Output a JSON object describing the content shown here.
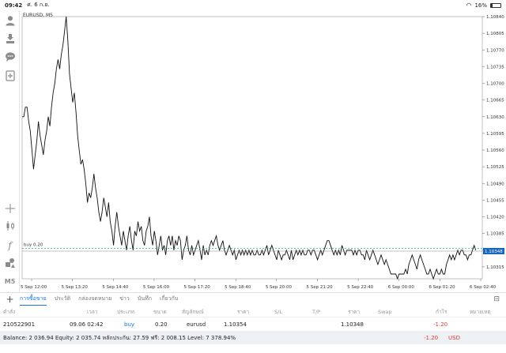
{
  "status_bar": {
    "time": "09:42",
    "date": "ศ. 6 ก.ย.",
    "battery": "16%",
    "battery_level": 0.16
  },
  "sidebar": {
    "icons": [
      "user-icon",
      "transfer-icon",
      "chat-icon",
      "add-document-icon",
      "crosshair-icon",
      "candlestick-icon",
      "function-icon",
      "objects-icon"
    ],
    "timeframe": "M5"
  },
  "chart": {
    "symbol_label": "EURUSD, M5",
    "buy_line_label": "buy 0.20",
    "current_price_label": "1.10348"
  },
  "chart_data": {
    "type": "line",
    "title": "EURUSD, M5",
    "ylim": [
      1.1029,
      1.1084
    ],
    "y_ticks": [
      "1.10840",
      "1.10805",
      "1.10770",
      "1.10735",
      "1.10700",
      "1.10665",
      "1.10630",
      "1.10595",
      "1.10560",
      "1.10525",
      "1.10490",
      "1.10455",
      "1.10420",
      "1.10385",
      "1.10350",
      "1.10315"
    ],
    "x_ticks": [
      "5 Sep 12:00",
      "5 Sep 13:20",
      "5 Sep 14:40",
      "5 Sep 16:00",
      "5 Sep 17:20",
      "5 Sep 18:40",
      "5 Sep 20:00",
      "5 Sep 21:20",
      "5 Sep 22:40",
      "6 Sep 00:00",
      "6 Sep 01:20",
      "6 Sep 02:40"
    ],
    "x_range": [
      0,
      282
    ],
    "trade_level": 1.10354,
    "current_price": 1.10348,
    "series": [
      {
        "values": [
          1.1063,
          1.1063,
          1.1065,
          1.1065,
          1.1062,
          1.106,
          1.1056,
          1.1052,
          1.1055,
          1.1058,
          1.1062,
          1.1059,
          1.1057,
          1.1055,
          1.1058,
          1.106,
          1.1063,
          1.1061,
          1.1065,
          1.1068,
          1.107,
          1.1073,
          1.1075,
          1.1073,
          1.1076,
          1.1078,
          1.1081,
          1.1084,
          1.1079,
          1.1072,
          1.1069,
          1.1066,
          1.1068,
          1.1064,
          1.1059,
          1.1056,
          1.1053,
          1.1054,
          1.1052,
          1.1049,
          1.1045,
          1.1047,
          1.1046,
          1.1048,
          1.1051,
          1.1048,
          1.1046,
          1.1043,
          1.1041,
          1.1043,
          1.1046,
          1.1044,
          1.1042,
          1.1045,
          1.1041,
          1.1039,
          1.1036,
          1.104,
          1.1043,
          1.104,
          1.1038,
          1.1036,
          1.1039,
          1.1037,
          1.1035,
          1.1038,
          1.104,
          1.1037,
          1.1035,
          1.1039,
          1.1038,
          1.1041,
          1.1039,
          1.104,
          1.1037,
          1.1036,
          1.1039,
          1.104,
          1.1042,
          1.1038,
          1.1036,
          1.1039,
          1.1037,
          1.1034,
          1.1036,
          1.1038,
          1.1035,
          1.1036,
          1.1034,
          1.1037,
          1.1038,
          1.1036,
          1.1038,
          1.1035,
          1.1037,
          1.1036,
          1.1038,
          1.1037,
          1.1033,
          1.1035,
          1.1036,
          1.1038,
          1.1035,
          1.1034,
          1.1036,
          1.1034,
          1.1035,
          1.1036,
          1.1037,
          1.1035,
          1.1033,
          1.1036,
          1.1034,
          1.1035,
          1.1034,
          1.1036,
          1.1037,
          1.1036,
          1.1037,
          1.1038,
          1.1036,
          1.1035,
          1.1036,
          1.1037,
          1.1035,
          1.1034,
          1.1035,
          1.1036,
          1.1035,
          1.1034,
          1.1035,
          1.1033,
          1.1034,
          1.1035,
          1.1034,
          1.1035,
          1.1034,
          1.1035,
          1.1034,
          1.1035,
          1.1034,
          1.1035,
          1.1034,
          1.1034,
          1.1035,
          1.1034,
          1.1034,
          1.1035,
          1.1034,
          1.1035,
          1.1036,
          1.1034,
          1.1035,
          1.1036,
          1.1035,
          1.1034,
          1.1033,
          1.1035,
          1.1034,
          1.1033,
          1.1034,
          1.1034,
          1.1035,
          1.1034,
          1.1033,
          1.1035,
          1.1033,
          1.1034,
          1.1035,
          1.1034,
          1.1035,
          1.1034,
          1.1035,
          1.1034,
          1.1034,
          1.1035,
          1.1035,
          1.1034,
          1.1035,
          1.1035,
          1.1034,
          1.1033,
          1.1034,
          1.1035,
          1.1034,
          1.1035,
          1.1036,
          1.1037,
          1.1037,
          1.1036,
          1.1035,
          1.1034,
          1.1035,
          1.1034,
          1.1035,
          1.1034,
          1.1036,
          1.1035,
          1.1034,
          1.1035,
          1.1035,
          1.1035,
          1.1035,
          1.1034,
          1.1035,
          1.1034,
          1.1035,
          1.1035,
          1.1034,
          1.1034,
          1.1033,
          1.1035,
          1.1034,
          1.1033,
          1.1034,
          1.1035,
          1.1034,
          1.1033,
          1.1032,
          1.1033,
          1.1034,
          1.1033,
          1.1032,
          1.1033,
          1.1032,
          1.1031,
          1.103,
          1.103,
          1.103,
          1.103,
          1.1029,
          1.103,
          1.103,
          1.103,
          1.103,
          1.1031,
          1.103,
          1.1032,
          1.1033,
          1.1034,
          1.1033,
          1.1032,
          1.1031,
          1.1033,
          1.1034,
          1.1033,
          1.1032,
          1.1031,
          1.103,
          1.103,
          1.1031,
          1.103,
          1.1029,
          1.103,
          1.1031,
          1.103,
          1.103,
          1.1031,
          1.103,
          1.103,
          1.1032,
          1.1033,
          1.1034,
          1.1033,
          1.1034,
          1.1033,
          1.1034,
          1.1035,
          1.1034,
          1.1035,
          1.1035,
          1.1034,
          1.1034,
          1.1033,
          1.1034,
          1.1034,
          1.1035,
          1.1036,
          1.1035
        ]
      }
    ]
  },
  "toolbar": {
    "tabs": [
      "การซื้อขาย",
      "ประวัติ",
      "กล่องจดหมาย",
      "ข่าว",
      "บันทึก",
      "เกี่ยวกับ"
    ],
    "active_tab": 0
  },
  "table": {
    "headers": [
      "คำสั่ง",
      "เวลา",
      "ประเภท",
      "ขนาด",
      "สัญลักษณ์",
      "ราคา",
      "S/L",
      "T/P",
      "ราคา",
      "Swap",
      "กำไร",
      "หมายเหตุ"
    ],
    "rows": [
      {
        "order": "210522901",
        "time": "09.06 02:42",
        "type": "buy",
        "size": "0.20",
        "symbol": "eurusd",
        "open_price": "1.10354",
        "sl": "",
        "tp": "",
        "price": "1.10348",
        "swap": "",
        "profit": "-1.20",
        "comment": ""
      }
    ]
  },
  "summary": {
    "text": "Balance: 2 036.94 Equity: 2 035.74 หลักประกัน: 27.59 ฟรี: 2 008.15 Level: 7 378.94%",
    "profit": "-1.20",
    "currency": "USD"
  }
}
